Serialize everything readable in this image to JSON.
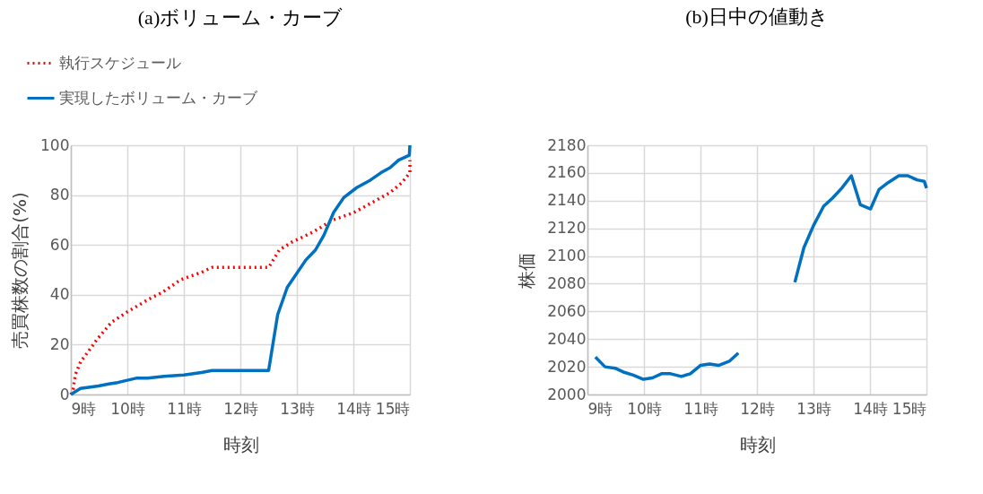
{
  "chart_data": [
    {
      "type": "line",
      "title": "(a)ボリューム・カーブ",
      "xlabel": "時刻",
      "ylabel": "売買株数の割合(%)",
      "xlim": [
        9,
        15
      ],
      "ylim": [
        0,
        100
      ],
      "xticks": [
        {
          "value": 9,
          "label": "9時"
        },
        {
          "value": 10,
          "label": "10時"
        },
        {
          "value": 11,
          "label": "11時"
        },
        {
          "value": 12,
          "label": "12時"
        },
        {
          "value": 13,
          "label": "13時"
        },
        {
          "value": 14,
          "label": "14時"
        },
        {
          "value": 15,
          "label": "15時"
        }
      ],
      "yticks": [
        0,
        20,
        40,
        60,
        80,
        100
      ],
      "grid": true,
      "legend": "top left",
      "series": [
        {
          "name": "執行スケジュール",
          "color": "#ff0000",
          "line_style": "dotted",
          "x": [
            9,
            9.04,
            9.08,
            9.17,
            9.3,
            9.46,
            9.72,
            9.99,
            10.36,
            10.62,
            10.94,
            11.31,
            11.5,
            12.5,
            12.69,
            12.9,
            13.27,
            13.64,
            14.01,
            14.33,
            14.65,
            14.86,
            15,
            15
          ],
          "values": [
            0,
            2,
            8,
            13,
            17,
            22,
            29,
            33,
            38,
            41,
            46,
            49,
            51,
            51,
            58,
            61,
            65,
            70,
            73,
            77,
            81,
            85,
            89,
            94
          ]
        },
        {
          "name": "実現したボリューム・カーブ",
          "color": "#0070c0",
          "line_style": "solid",
          "x": [
            9,
            9.17,
            9.49,
            9.67,
            9.83,
            10.17,
            10.36,
            10.65,
            11,
            11.31,
            11.5,
            12.5,
            12.66,
            12.83,
            13.16,
            13.33,
            13.48,
            13.65,
            13.83,
            14.06,
            14.3,
            14.49,
            14.65,
            14.8,
            14.99,
            15
          ],
          "values": [
            0,
            2.4,
            3.4,
            4.2,
            4.8,
            6.6,
            6.6,
            7.3,
            7.8,
            8.8,
            9.6,
            9.6,
            32,
            43,
            54,
            58,
            64,
            73,
            79,
            83,
            86,
            89,
            91,
            94,
            96,
            100
          ]
        }
      ]
    },
    {
      "type": "line",
      "title": "(b)日中の値動き",
      "xlabel": "時刻",
      "ylabel": "株価",
      "xlim": [
        9,
        15
      ],
      "ylim": [
        2000,
        2180
      ],
      "xticks": [
        {
          "value": 9,
          "label": "9時"
        },
        {
          "value": 10,
          "label": "10時"
        },
        {
          "value": 11,
          "label": "11時"
        },
        {
          "value": 12,
          "label": "12時"
        },
        {
          "value": 13,
          "label": "13時"
        },
        {
          "value": 14,
          "label": "14時"
        },
        {
          "value": 15,
          "label": "15時"
        }
      ],
      "yticks": [
        2000,
        2020,
        2040,
        2060,
        2080,
        2100,
        2120,
        2140,
        2160,
        2180
      ],
      "grid": true,
      "series": [
        {
          "color": "#0070c0",
          "line_style": "solid",
          "x": [
            9.14,
            9.31,
            9.49,
            9.65,
            9.81,
            9.99,
            10.15,
            10.31,
            10.47,
            10.66,
            10.82,
            11,
            11.16,
            11.32,
            11.51,
            11.67,
            12.2,
            12.67,
            12.83,
            13,
            13.18,
            13.34,
            13.5,
            13.67,
            13.83,
            14.01,
            14.16,
            14.32,
            14.51,
            14.67,
            14.83,
            14.96,
            15
          ],
          "values": [
            2027,
            2020,
            2019,
            2016,
            2014,
            2011,
            2012,
            2015,
            2015,
            2013,
            2015,
            2021,
            2022,
            2021,
            2024,
            2030,
            null,
            2081,
            2106,
            2122,
            2136,
            2142,
            2149,
            2158,
            2137,
            2134,
            2148,
            2153,
            2158,
            2158,
            2155,
            2154,
            2149
          ]
        }
      ]
    }
  ]
}
